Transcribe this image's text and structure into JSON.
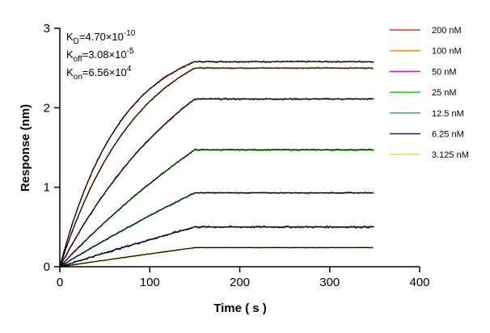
{
  "chart_data": {
    "type": "line",
    "xlabel": "Time ( s )",
    "ylabel": "Response (nm)",
    "xlim": [
      0,
      400
    ],
    "ylim": [
      0,
      3
    ],
    "x_ticks": [
      "0",
      "100",
      "200",
      "300",
      "400"
    ],
    "y_ticks": [
      "0",
      "1",
      "2",
      "3"
    ],
    "association_end_s": 150,
    "dissociation_end_s": 350,
    "grid": false,
    "legend_placement": "top-right",
    "kinetics": {
      "kd": {
        "sym": "K",
        "sub": "D",
        "mid": "=4.70×10",
        "sup": "-10"
      },
      "koff": {
        "sym": "K",
        "sub": "off",
        "mid": "=3.08×10",
        "sup": "-5"
      },
      "kon": {
        "sym": "K",
        "sub": "on",
        "mid": "=6.56×10",
        "sup": "4"
      }
    },
    "fit_color": "#000000",
    "series": [
      {
        "name": "200 nM",
        "color": "#e8342f",
        "plateau": 2.58,
        "k": 0.0148
      },
      {
        "name": "100 nM",
        "color": "#f5900c",
        "plateau": 2.5,
        "k": 0.0115
      },
      {
        "name": "50 nM",
        "color": "#b21fd1",
        "plateau": 2.11,
        "k": 0.0062
      },
      {
        "name": "25 nM",
        "color": "#2cc11f",
        "plateau": 1.47,
        "k": 0.0028
      },
      {
        "name": "12.5 nM",
        "color": "#1aabb8",
        "plateau": 0.93,
        "k": 0.0015
      },
      {
        "name": "6.25 nM",
        "color": "#1a1aa8",
        "plateau": 0.5,
        "k": 0.0008
      },
      {
        "name": "3.125 nM",
        "color": "#f2e61d",
        "plateau": 0.24,
        "k": 0.0005
      }
    ]
  }
}
